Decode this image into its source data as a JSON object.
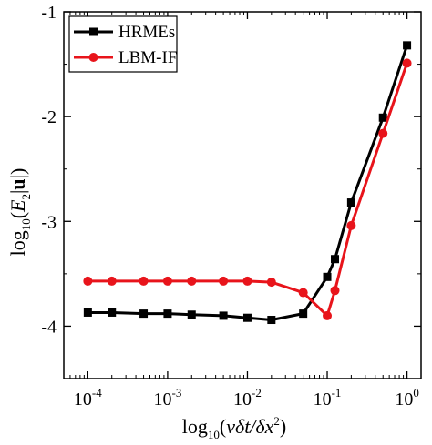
{
  "chart_data": {
    "type": "line",
    "xscale": "log",
    "xlim": [
      5e-05,
      1.5
    ],
    "ylim": [
      -4.5,
      -1
    ],
    "x_ticks": [
      {
        "value": 0.0001,
        "base": "10",
        "exp": "-4"
      },
      {
        "value": 0.001,
        "base": "10",
        "exp": "-3"
      },
      {
        "value": 0.01,
        "base": "10",
        "exp": "-2"
      },
      {
        "value": 0.1,
        "base": "10",
        "exp": "-1"
      },
      {
        "value": 1,
        "base": "10",
        "exp": "0"
      }
    ],
    "y_ticks": [
      {
        "value": -1,
        "label": "-1"
      },
      {
        "value": -2,
        "label": "-2"
      },
      {
        "value": -3,
        "label": "-3"
      },
      {
        "value": -4,
        "label": "-4"
      }
    ],
    "xlabel": {
      "prefix": "log",
      "sub": "10",
      "open": "(",
      "nu": "v",
      "mid": "δt/δx",
      "sup": "2",
      "close": ")"
    },
    "ylabel": {
      "prefix": "log",
      "sub": "10",
      "open": "(",
      "E": "E",
      "sub2": "2",
      "bar1": "|",
      "u": "u",
      "bar2": "|",
      "close": ")"
    },
    "grid": false,
    "legend": "top-left",
    "series": [
      {
        "name": "HRMEs",
        "color": "#000000",
        "marker": "square",
        "x": [
          0.0001,
          0.0002,
          0.0005,
          0.001,
          0.002,
          0.005,
          0.01,
          0.02,
          0.05,
          0.1,
          0.125,
          0.2,
          0.5,
          1
        ],
        "y": [
          -3.87,
          -3.87,
          -3.88,
          -3.88,
          -3.89,
          -3.9,
          -3.92,
          -3.94,
          -3.88,
          -3.53,
          -3.36,
          -2.82,
          -2.01,
          -1.32
        ]
      },
      {
        "name": "LBM-IF",
        "color": "#e8141b",
        "marker": "circle",
        "x": [
          0.0001,
          0.0002,
          0.0005,
          0.001,
          0.002,
          0.005,
          0.01,
          0.02,
          0.05,
          0.1,
          0.125,
          0.2,
          0.5,
          1
        ],
        "y": [
          -3.57,
          -3.57,
          -3.57,
          -3.57,
          -3.57,
          -3.57,
          -3.57,
          -3.58,
          -3.68,
          -3.9,
          -3.66,
          -3.04,
          -2.16,
          -1.49
        ]
      }
    ]
  }
}
